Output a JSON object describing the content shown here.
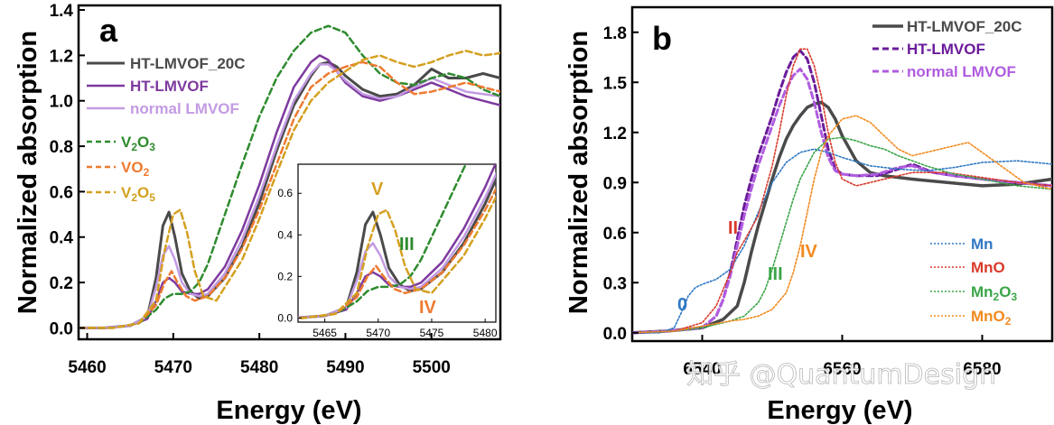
{
  "watermark": "知乎 @QuantumDesign",
  "chart_data": [
    {
      "panel": "a",
      "type": "line",
      "xlabel": "Energy (eV)",
      "ylabel": "Normalized absorption",
      "xlim": [
        5459,
        5508
      ],
      "ylim": [
        -0.05,
        1.42
      ],
      "xticks": [
        5460,
        5470,
        5480,
        5490,
        5500
      ],
      "yticks": [
        "0.0",
        "0.2",
        "0.4",
        "0.6",
        "0.8",
        "1.0",
        "1.2",
        "1.4"
      ],
      "legend": {
        "placement": "top-left",
        "entries": [
          "HT-LMVOF_20C",
          "HT-LMVOF",
          "normal LMVOF",
          "V2O3",
          "VO2",
          "V2O5"
        ]
      },
      "series": [
        {
          "name": "HT-LMVOF_20C",
          "color": "#4a4a4a",
          "style": "solid",
          "width": 3,
          "x": [
            5459,
            5462,
            5465,
            5467,
            5468,
            5468.8,
            5469.5,
            5470.2,
            5471,
            5472,
            5473,
            5474,
            5476,
            5478,
            5480,
            5482,
            5484,
            5486,
            5487,
            5488,
            5489,
            5490,
            5492,
            5494,
            5496,
            5498,
            5500,
            5502,
            5504,
            5506,
            5508
          ],
          "y": [
            0.0,
            0.0,
            0.01,
            0.05,
            0.22,
            0.45,
            0.51,
            0.4,
            0.24,
            0.16,
            0.13,
            0.14,
            0.22,
            0.36,
            0.55,
            0.78,
            0.98,
            1.11,
            1.16,
            1.17,
            1.15,
            1.11,
            1.05,
            1.02,
            1.03,
            1.07,
            1.14,
            1.1,
            1.1,
            1.12,
            1.1
          ]
        },
        {
          "name": "HT-LMVOF",
          "color": "#7e3a9e",
          "style": "solid",
          "width": 2.5,
          "x": [
            5459,
            5462,
            5465,
            5467,
            5468,
            5468.8,
            5469.5,
            5470.2,
            5471,
            5472,
            5473,
            5474,
            5476,
            5478,
            5480,
            5482,
            5484,
            5486,
            5487,
            5488,
            5489,
            5490,
            5492,
            5494,
            5496,
            5498,
            5500,
            5502,
            5504,
            5506,
            5508
          ],
          "y": [
            0.0,
            0.0,
            0.01,
            0.04,
            0.12,
            0.2,
            0.22,
            0.2,
            0.16,
            0.15,
            0.15,
            0.17,
            0.27,
            0.43,
            0.63,
            0.86,
            1.06,
            1.17,
            1.2,
            1.18,
            1.13,
            1.08,
            1.02,
            1.0,
            1.02,
            1.05,
            1.08,
            1.05,
            1.02,
            1.0,
            0.98
          ]
        },
        {
          "name": "normal LMVOF",
          "color": "#c39be3",
          "style": "solid",
          "width": 2.5,
          "x": [
            5459,
            5462,
            5465,
            5467,
            5468,
            5468.8,
            5469.5,
            5470.2,
            5471,
            5472,
            5473,
            5474,
            5476,
            5478,
            5480,
            5482,
            5484,
            5486,
            5487,
            5488,
            5489,
            5490,
            5492,
            5494,
            5496,
            5498,
            5500,
            5502,
            5504,
            5506,
            5508
          ],
          "y": [
            0.0,
            0.0,
            0.01,
            0.05,
            0.18,
            0.32,
            0.36,
            0.3,
            0.2,
            0.15,
            0.14,
            0.15,
            0.24,
            0.39,
            0.58,
            0.8,
            1.0,
            1.12,
            1.16,
            1.16,
            1.13,
            1.09,
            1.03,
            1.01,
            1.02,
            1.06,
            1.1,
            1.07,
            1.04,
            1.03,
            1.02
          ]
        },
        {
          "name": "V2O3",
          "color": "#2e8b2e",
          "style": "dashed",
          "width": 2.5,
          "x": [
            5459,
            5463,
            5466,
            5468,
            5469,
            5470,
            5471,
            5472,
            5473,
            5474,
            5476,
            5478,
            5480,
            5482,
            5484,
            5486,
            5488,
            5490,
            5492,
            5494,
            5496,
            5498,
            5500,
            5502,
            5504,
            5506,
            5508
          ],
          "y": [
            0.0,
            0.0,
            0.02,
            0.08,
            0.13,
            0.15,
            0.15,
            0.16,
            0.2,
            0.28,
            0.5,
            0.72,
            0.93,
            1.1,
            1.22,
            1.3,
            1.33,
            1.3,
            1.2,
            1.12,
            1.08,
            1.07,
            1.1,
            1.12,
            1.1,
            1.05,
            1.02
          ]
        },
        {
          "name": "VO2",
          "color": "#ee7a30",
          "style": "dashed",
          "width": 2.5,
          "x": [
            5459,
            5463,
            5466,
            5468,
            5469,
            5469.8,
            5470.5,
            5471.5,
            5472.5,
            5474,
            5476,
            5478,
            5480,
            5482,
            5484,
            5486,
            5488,
            5490,
            5492,
            5494,
            5496,
            5498,
            5500,
            5502,
            5504,
            5506,
            5508
          ],
          "y": [
            0.0,
            0.0,
            0.02,
            0.1,
            0.2,
            0.25,
            0.2,
            0.14,
            0.12,
            0.14,
            0.22,
            0.35,
            0.52,
            0.72,
            0.92,
            1.06,
            1.12,
            1.15,
            1.17,
            1.15,
            1.08,
            1.03,
            1.04,
            1.06,
            1.08,
            1.06,
            1.04
          ]
        },
        {
          "name": "V2O5",
          "color": "#d4a020",
          "style": "dashed",
          "width": 2.5,
          "x": [
            5459,
            5463,
            5466,
            5468,
            5469,
            5470,
            5470.8,
            5471.6,
            5472.5,
            5473.5,
            5475,
            5478,
            5480,
            5482,
            5484,
            5486,
            5488,
            5490,
            5492,
            5494,
            5496,
            5498,
            5500,
            5502,
            5504,
            5506,
            5508
          ],
          "y": [
            0.0,
            0.0,
            0.02,
            0.12,
            0.34,
            0.5,
            0.52,
            0.42,
            0.25,
            0.14,
            0.12,
            0.3,
            0.48,
            0.68,
            0.87,
            1.0,
            1.08,
            1.13,
            1.18,
            1.2,
            1.17,
            1.15,
            1.17,
            1.2,
            1.22,
            1.2,
            1.21
          ]
        }
      ],
      "annotations": [
        {
          "text": "V",
          "color": "#d4a020"
        },
        {
          "text": "III",
          "color": "#2e8b2e"
        },
        {
          "text": "IV",
          "color": "#ee7a30"
        }
      ],
      "inset": {
        "xlim": [
          5462.5,
          5481
        ],
        "ylim": [
          -0.02,
          0.74
        ],
        "xticks": [
          5465,
          5470,
          5475,
          5480
        ],
        "yticks": [
          "0.0",
          "0.2",
          "0.4",
          "0.6"
        ]
      }
    },
    {
      "panel": "b",
      "type": "line",
      "xlabel": "Energy (eV)",
      "ylabel": "Normalized absorption",
      "xlim": [
        6530,
        6590
      ],
      "ylim": [
        -0.05,
        1.95
      ],
      "xticks": [
        6540,
        6560,
        6580
      ],
      "xtick_labels": [
        "6540",
        "6560",
        "6580"
      ],
      "yticks": [
        "0.0",
        "0.3",
        "0.6",
        "0.9",
        "1.2",
        "1.5",
        "1.8"
      ],
      "legend": {
        "placement": "top-right",
        "entries": [
          "HT-LMVOF_20C",
          "HT-LMVOF",
          "normal LMVOF"
        ]
      },
      "legend2": {
        "placement": "bottom-right",
        "entries": [
          "Mn",
          "MnO",
          "Mn2O3",
          "MnO2"
        ]
      },
      "series": [
        {
          "name": "HT-LMVOF_20C",
          "color": "#4a4a4a",
          "style": "solid",
          "width": 3.5,
          "x": [
            6530,
            6535,
            6540,
            6543,
            6545,
            6546,
            6547,
            6548,
            6549,
            6550,
            6551,
            6552,
            6553,
            6554,
            6555,
            6556,
            6557,
            6558,
            6559,
            6560,
            6562,
            6564,
            6566,
            6570,
            6575,
            6580,
            6585,
            6590
          ],
          "y": [
            0.0,
            0.01,
            0.03,
            0.08,
            0.16,
            0.3,
            0.48,
            0.64,
            0.78,
            0.92,
            1.05,
            1.16,
            1.24,
            1.3,
            1.35,
            1.37,
            1.38,
            1.35,
            1.28,
            1.18,
            1.03,
            0.96,
            0.94,
            0.92,
            0.9,
            0.88,
            0.89,
            0.92
          ]
        },
        {
          "name": "HT-LMVOF",
          "color": "#6a1b9a",
          "style": "dashed",
          "width": 3,
          "x": [
            6530,
            6535,
            6540,
            6542,
            6543,
            6544,
            6545,
            6546,
            6547,
            6548,
            6549,
            6550,
            6551,
            6552,
            6553,
            6554,
            6555,
            6556,
            6557,
            6558,
            6559,
            6560,
            6562,
            6565,
            6568,
            6570,
            6573,
            6576,
            6580,
            6585,
            6590
          ],
          "y": [
            0.0,
            0.01,
            0.03,
            0.1,
            0.2,
            0.36,
            0.56,
            0.76,
            0.92,
            1.06,
            1.18,
            1.3,
            1.44,
            1.56,
            1.65,
            1.69,
            1.64,
            1.5,
            1.3,
            1.1,
            0.98,
            0.95,
            0.94,
            0.94,
            0.98,
            1.01,
            0.96,
            0.94,
            0.92,
            0.9,
            0.88
          ]
        },
        {
          "name": "normal LMVOF",
          "color": "#b05ce0",
          "style": "dashed",
          "width": 3,
          "x": [
            6530,
            6535,
            6540,
            6542,
            6543,
            6544,
            6545,
            6546,
            6547,
            6548,
            6549,
            6550,
            6551,
            6552,
            6553,
            6554,
            6555,
            6556,
            6557,
            6558,
            6559,
            6560,
            6562,
            6565,
            6568,
            6570,
            6573,
            6576,
            6580,
            6585,
            6590
          ],
          "y": [
            0.0,
            0.01,
            0.03,
            0.1,
            0.2,
            0.34,
            0.52,
            0.7,
            0.86,
            1.0,
            1.12,
            1.24,
            1.36,
            1.46,
            1.54,
            1.58,
            1.52,
            1.38,
            1.2,
            1.05,
            0.97,
            0.95,
            0.94,
            0.95,
            0.99,
            1.0,
            0.96,
            0.94,
            0.92,
            0.9,
            0.88
          ]
        },
        {
          "name": "Mn",
          "color": "#2f78c4",
          "style": "dotted",
          "width": 1.6,
          "x": [
            6530,
            6534,
            6536,
            6537,
            6538,
            6539,
            6540,
            6542,
            6544,
            6546,
            6548,
            6550,
            6552,
            6554,
            6556,
            6558,
            6560,
            6564,
            6568,
            6572,
            6576,
            6580,
            6585,
            6590
          ],
          "y": [
            0.0,
            0.0,
            0.03,
            0.12,
            0.22,
            0.27,
            0.29,
            0.32,
            0.38,
            0.52,
            0.72,
            0.9,
            1.02,
            1.08,
            1.1,
            1.08,
            1.05,
            1.0,
            0.98,
            0.97,
            0.99,
            1.02,
            1.03,
            1.01
          ]
        },
        {
          "name": "MnO",
          "color": "#d93a2b",
          "style": "dotted",
          "width": 1.6,
          "x": [
            6530,
            6536,
            6540,
            6542,
            6544,
            6545,
            6546,
            6548,
            6550,
            6551,
            6552,
            6553,
            6554,
            6555,
            6556,
            6557,
            6558,
            6559,
            6560,
            6562,
            6564,
            6566,
            6570,
            6575,
            6580,
            6585,
            6590
          ],
          "y": [
            0.0,
            0.01,
            0.06,
            0.16,
            0.36,
            0.48,
            0.55,
            0.7,
            1.0,
            1.2,
            1.42,
            1.6,
            1.7,
            1.7,
            1.6,
            1.42,
            1.2,
            1.02,
            0.92,
            0.88,
            0.9,
            0.92,
            0.96,
            0.96,
            0.93,
            0.9,
            0.88
          ]
        },
        {
          "name": "Mn2O3",
          "color": "#3aa548",
          "style": "dotted",
          "width": 1.6,
          "x": [
            6530,
            6536,
            6540,
            6544,
            6546,
            6548,
            6549,
            6550,
            6551,
            6552,
            6553,
            6554,
            6556,
            6558,
            6560,
            6562,
            6564,
            6566,
            6568,
            6572,
            6576,
            6580,
            6585,
            6590
          ],
          "y": [
            0.0,
            0.01,
            0.03,
            0.07,
            0.1,
            0.18,
            0.26,
            0.38,
            0.52,
            0.66,
            0.8,
            0.92,
            1.08,
            1.16,
            1.17,
            1.15,
            1.12,
            1.1,
            1.06,
            1.0,
            0.95,
            0.92,
            0.88,
            0.86
          ]
        },
        {
          "name": "MnO2",
          "color": "#f28a1e",
          "style": "dotted",
          "width": 1.6,
          "x": [
            6530,
            6536,
            6540,
            6544,
            6546,
            6548,
            6550,
            6552,
            6553,
            6554,
            6555,
            6556,
            6557,
            6558,
            6560,
            6562,
            6564,
            6566,
            6568,
            6570,
            6574,
            6578,
            6582,
            6586,
            6590
          ],
          "y": [
            0.0,
            0.01,
            0.04,
            0.07,
            0.08,
            0.1,
            0.14,
            0.24,
            0.36,
            0.52,
            0.72,
            0.92,
            1.08,
            1.18,
            1.28,
            1.3,
            1.26,
            1.18,
            1.1,
            1.06,
            1.1,
            1.14,
            1.02,
            0.9,
            0.86
          ]
        }
      ],
      "annotations": [
        {
          "text": "0",
          "color": "#2f78c4"
        },
        {
          "text": "II",
          "color": "#d93a2b"
        },
        {
          "text": "III",
          "color": "#3aa548"
        },
        {
          "text": "IV",
          "color": "#f28a1e"
        }
      ]
    }
  ]
}
